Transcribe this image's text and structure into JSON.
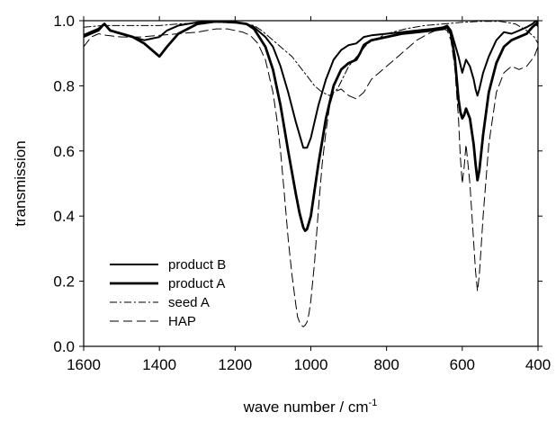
{
  "chart_data": {
    "type": "line",
    "title": "",
    "xlabel": "wave number / cm",
    "xlabel_superscript": "-1",
    "ylabel": "transmission",
    "xlim": [
      1600,
      400
    ],
    "ylim": [
      0.0,
      1.0
    ],
    "x_reversed": true,
    "x_ticks": [
      1600,
      1400,
      1200,
      1000,
      800,
      600,
      400
    ],
    "x_tick_labels": [
      "1600",
      "1400",
      "1200",
      "1000",
      "800",
      "600",
      "400"
    ],
    "y_ticks": [
      0.0,
      0.2,
      0.4,
      0.6,
      0.8,
      1.0
    ],
    "y_tick_labels": [
      "0.0",
      "0.2",
      "0.4",
      "0.6",
      "0.8",
      "1.0"
    ],
    "grid": false,
    "legend_position": "bottom-left",
    "series": [
      {
        "name": "product B",
        "color": "#000000",
        "style": "solid",
        "weight": "medium",
        "x": [
          1600,
          1580,
          1560,
          1545,
          1530,
          1500,
          1470,
          1440,
          1420,
          1400,
          1380,
          1350,
          1300,
          1250,
          1200,
          1170,
          1150,
          1120,
          1100,
          1080,
          1060,
          1040,
          1030,
          1020,
          1010,
          1000,
          990,
          980,
          960,
          940,
          920,
          900,
          880,
          870,
          860,
          840,
          800,
          760,
          720,
          680,
          650,
          640,
          630,
          620,
          610,
          600,
          590,
          580,
          570,
          565,
          560,
          555,
          545,
          530,
          510,
          490,
          470,
          450,
          430,
          415,
          405,
          400
        ],
        "y": [
          0.95,
          0.96,
          0.97,
          0.99,
          0.97,
          0.96,
          0.95,
          0.94,
          0.945,
          0.95,
          0.97,
          0.985,
          0.995,
          0.998,
          0.995,
          0.99,
          0.98,
          0.95,
          0.92,
          0.86,
          0.78,
          0.69,
          0.65,
          0.61,
          0.61,
          0.64,
          0.69,
          0.74,
          0.82,
          0.88,
          0.91,
          0.925,
          0.93,
          0.94,
          0.95,
          0.955,
          0.96,
          0.965,
          0.97,
          0.975,
          0.98,
          0.985,
          0.97,
          0.93,
          0.89,
          0.84,
          0.88,
          0.86,
          0.82,
          0.79,
          0.77,
          0.79,
          0.84,
          0.89,
          0.94,
          0.965,
          0.96,
          0.97,
          0.98,
          0.99,
          1.0,
          0.99
        ]
      },
      {
        "name": "product A",
        "color": "#000000",
        "style": "solid",
        "weight": "heavy",
        "x": [
          1600,
          1580,
          1560,
          1545,
          1530,
          1500,
          1470,
          1440,
          1420,
          1400,
          1380,
          1350,
          1300,
          1250,
          1200,
          1170,
          1150,
          1120,
          1100,
          1080,
          1060,
          1040,
          1030,
          1020,
          1015,
          1010,
          1000,
          990,
          980,
          960,
          940,
          920,
          900,
          880,
          870,
          860,
          840,
          800,
          760,
          720,
          680,
          650,
          640,
          630,
          620,
          610,
          605,
          600,
          595,
          590,
          580,
          570,
          565,
          560,
          555,
          545,
          530,
          510,
          490,
          470,
          450,
          430,
          415,
          405,
          400
        ],
        "y": [
          0.955,
          0.965,
          0.975,
          0.99,
          0.97,
          0.96,
          0.95,
          0.93,
          0.91,
          0.89,
          0.92,
          0.96,
          0.99,
          0.998,
          0.995,
          0.99,
          0.975,
          0.92,
          0.85,
          0.74,
          0.6,
          0.47,
          0.41,
          0.365,
          0.355,
          0.36,
          0.4,
          0.48,
          0.56,
          0.7,
          0.8,
          0.85,
          0.87,
          0.88,
          0.9,
          0.925,
          0.94,
          0.95,
          0.96,
          0.965,
          0.97,
          0.975,
          0.98,
          0.96,
          0.89,
          0.76,
          0.72,
          0.7,
          0.71,
          0.73,
          0.7,
          0.62,
          0.56,
          0.51,
          0.54,
          0.65,
          0.78,
          0.87,
          0.92,
          0.94,
          0.95,
          0.96,
          0.98,
          0.99,
          0.985
        ]
      },
      {
        "name": "seed A",
        "color": "#000000",
        "style": "dashdot",
        "weight": "thin",
        "x": [
          1600,
          1550,
          1500,
          1450,
          1400,
          1350,
          1300,
          1250,
          1200,
          1170,
          1150,
          1130,
          1110,
          1090,
          1070,
          1050,
          1030,
          1010,
          990,
          970,
          950,
          930,
          900,
          850,
          800,
          750,
          700,
          650,
          600,
          550,
          500,
          460,
          430,
          410,
          400
        ],
        "y": [
          0.98,
          0.985,
          0.985,
          0.985,
          0.985,
          0.99,
          0.993,
          0.995,
          0.993,
          0.99,
          0.985,
          0.97,
          0.95,
          0.93,
          0.91,
          0.89,
          0.86,
          0.83,
          0.8,
          0.78,
          0.77,
          0.79,
          0.86,
          0.93,
          0.96,
          0.975,
          0.985,
          0.99,
          0.995,
          0.998,
          0.998,
          0.99,
          0.97,
          0.95,
          0.93
        ]
      },
      {
        "name": "HAP",
        "color": "#000000",
        "style": "dashed",
        "weight": "thin",
        "x": [
          1600,
          1580,
          1560,
          1540,
          1500,
          1450,
          1400,
          1350,
          1300,
          1250,
          1220,
          1200,
          1180,
          1160,
          1140,
          1120,
          1100,
          1090,
          1080,
          1070,
          1060,
          1050,
          1040,
          1035,
          1030,
          1025,
          1020,
          1015,
          1010,
          1005,
          1000,
          990,
          980,
          970,
          960,
          950,
          940,
          920,
          900,
          880,
          860,
          840,
          800,
          760,
          720,
          690,
          670,
          650,
          640,
          630,
          620,
          610,
          605,
          600,
          595,
          590,
          580,
          570,
          565,
          560,
          555,
          545,
          530,
          510,
          490,
          470,
          450,
          430,
          410,
          400
        ],
        "y": [
          0.92,
          0.95,
          0.96,
          0.955,
          0.95,
          0.95,
          0.955,
          0.96,
          0.965,
          0.975,
          0.975,
          0.97,
          0.965,
          0.955,
          0.93,
          0.88,
          0.78,
          0.7,
          0.6,
          0.47,
          0.33,
          0.22,
          0.13,
          0.09,
          0.075,
          0.065,
          0.06,
          0.065,
          0.075,
          0.1,
          0.14,
          0.26,
          0.42,
          0.56,
          0.66,
          0.74,
          0.78,
          0.79,
          0.77,
          0.76,
          0.78,
          0.82,
          0.86,
          0.9,
          0.94,
          0.96,
          0.97,
          0.975,
          0.97,
          0.94,
          0.86,
          0.7,
          0.58,
          0.5,
          0.55,
          0.62,
          0.5,
          0.32,
          0.23,
          0.17,
          0.22,
          0.4,
          0.62,
          0.78,
          0.84,
          0.86,
          0.85,
          0.86,
          0.89,
          0.92
        ]
      }
    ]
  }
}
